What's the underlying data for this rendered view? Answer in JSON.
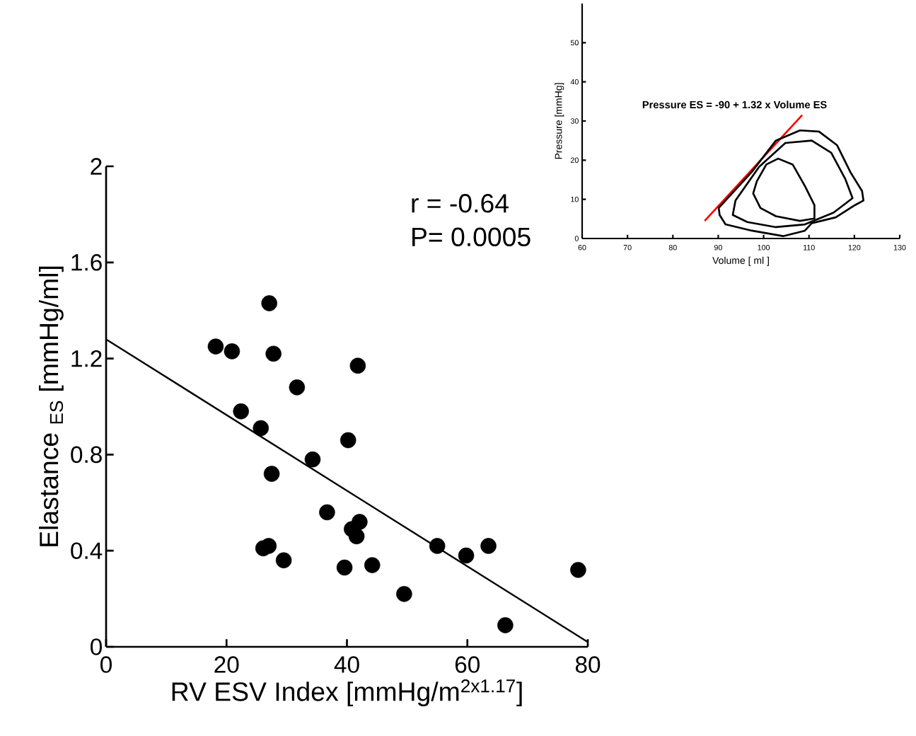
{
  "chart_data": [
    {
      "type": "scatter",
      "xlabel": "RV ESV Index [mmHg/m$^{2x1.17}$]",
      "ylabel": "Elastance $_{ES}$ [mmHg/ml]",
      "xlim": [
        0,
        80
      ],
      "xticks": [
        0,
        20,
        40,
        60,
        80
      ],
      "ylim": [
        0,
        2
      ],
      "yticks": [
        0,
        0.4,
        0.8,
        1.2,
        1.6,
        2
      ],
      "annotations": [
        "r = -0.64",
        "P= 0.0005"
      ],
      "series": [
        {
          "type": "scatter",
          "color": "#000000",
          "x": [
            18.2,
            20.9,
            27.1,
            27.8,
            41.8,
            31.7,
            22.4,
            25.7,
            40.2,
            34.3,
            27.5,
            36.7,
            40.8,
            42.1,
            41.6,
            26.1,
            27.0,
            29.5,
            39.6,
            44.2,
            55.0,
            59.8,
            63.5,
            49.5,
            66.3,
            78.4
          ],
          "values": [
            1.25,
            1.23,
            1.43,
            1.22,
            1.17,
            1.08,
            0.98,
            0.91,
            0.86,
            0.78,
            0.72,
            0.56,
            0.49,
            0.52,
            0.46,
            0.41,
            0.42,
            0.36,
            0.33,
            0.34,
            0.42,
            0.38,
            0.42,
            0.22,
            0.09,
            0.32
          ]
        },
        {
          "type": "line",
          "color": "#000000",
          "x": [
            0,
            80
          ],
          "values": [
            1.28,
            0.02
          ]
        }
      ]
    },
    {
      "type": "line",
      "xlabel": "Volume   [ ml ]",
      "ylabel": "Pressure [mmHg]",
      "xlim": [
        60,
        130
      ],
      "xticks": [
        60,
        70,
        80,
        90,
        100,
        110,
        120,
        130
      ],
      "ylim": [
        0,
        60
      ],
      "yticks": [
        0,
        10,
        20,
        30,
        40,
        50
      ],
      "annotations": [
        "Pressure ES = -90 + 1.32 x Volume  ES"
      ],
      "series": [
        {
          "color": "#ff0000",
          "x": [
            87,
            108.5
          ],
          "values": [
            4.5,
            31.5
          ]
        }
      ]
    }
  ]
}
